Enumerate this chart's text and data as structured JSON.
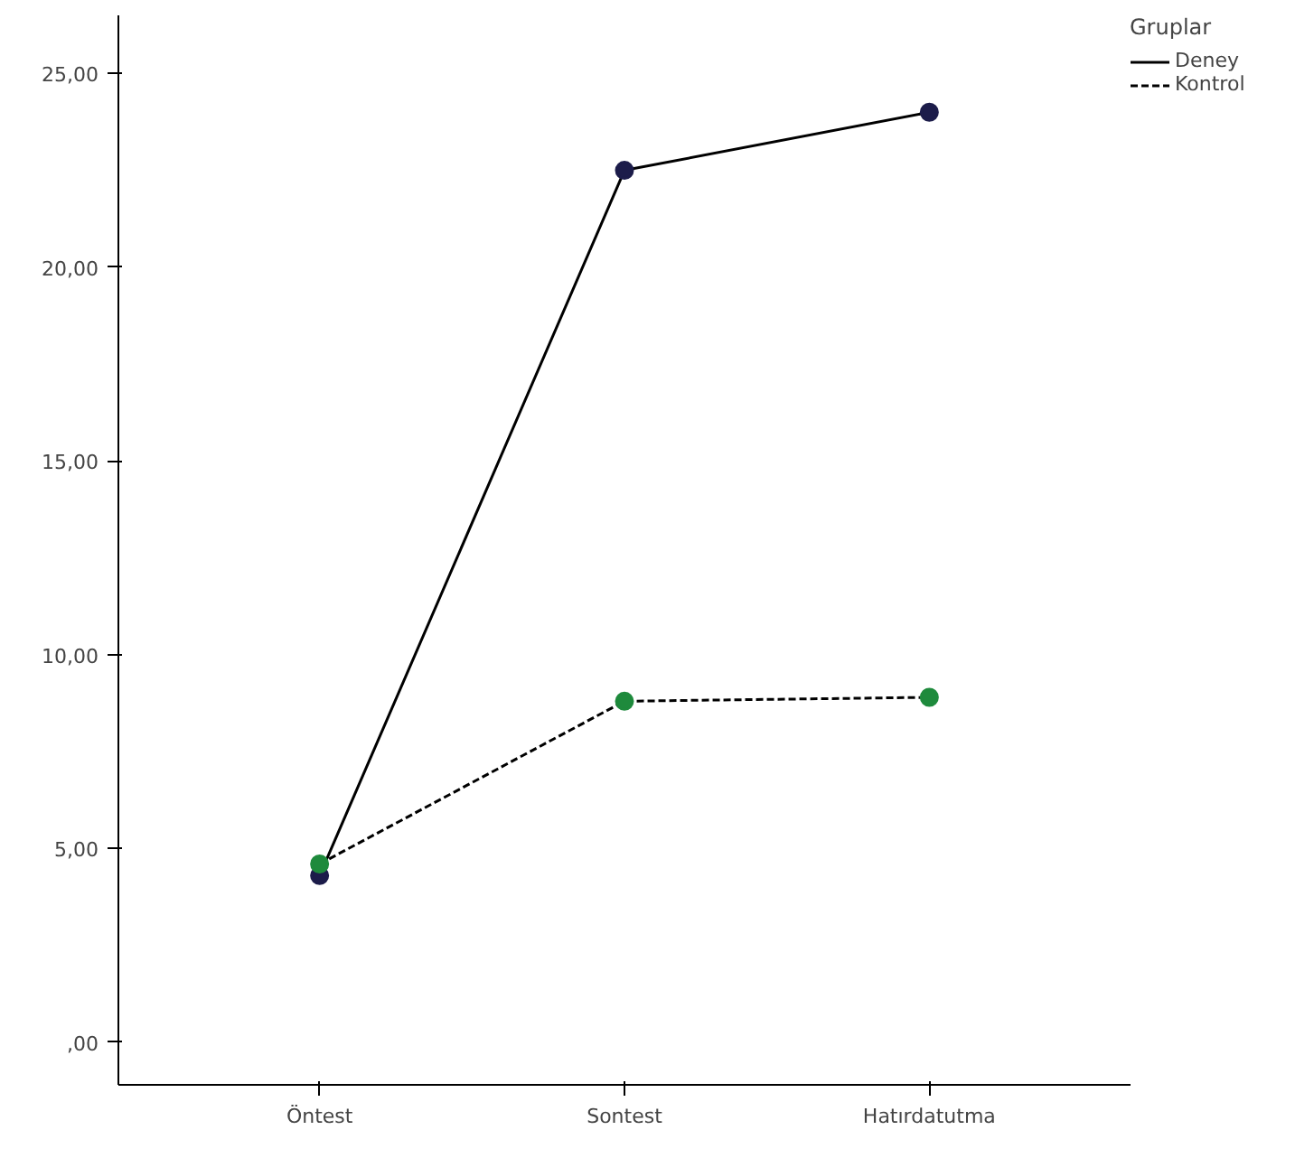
{
  "chart_data": {
    "type": "line",
    "categories": [
      "Öntest",
      "Sontest",
      "Hatırdatutma"
    ],
    "series": [
      {
        "name": "Deney",
        "color": "#1c1c4a",
        "values": [
          4.3,
          22.5,
          24.0
        ],
        "line_style": "solid"
      },
      {
        "name": "Kontrol",
        "color": "#1e8a3c",
        "values": [
          4.6,
          8.8,
          8.9
        ],
        "line_style": "dashed"
      }
    ],
    "ylim": [
      -1.1,
      26.5
    ],
    "yticks": [
      {
        "value": 0,
        "label": ",00"
      },
      {
        "value": 5,
        "label": "5,00"
      },
      {
        "value": 10,
        "label": "10,00"
      },
      {
        "value": 15,
        "label": "15,00"
      },
      {
        "value": 20,
        "label": "20,00"
      },
      {
        "value": 25,
        "label": "25,00"
      }
    ],
    "legend_title": "Gruplar",
    "legend": "right",
    "marker": "circle",
    "grid": false
  }
}
